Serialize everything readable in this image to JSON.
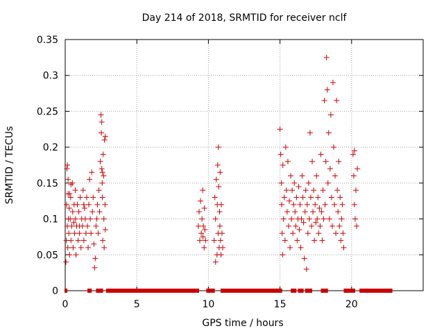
{
  "chart_data": {
    "type": "scatter",
    "title": "Day 214 of 2018, SRMTID for receiver nclf",
    "xlabel": "GPS time / hours",
    "ylabel": "SRMTID / TECUs",
    "xlim": [
      0,
      25
    ],
    "ylim": [
      0,
      0.35
    ],
    "xticks": [
      0,
      5,
      10,
      15,
      20
    ],
    "xtick_labels": [
      "0",
      "5",
      "10",
      "15",
      "20"
    ],
    "yticks": [
      0,
      0.05,
      0.1,
      0.15,
      0.2,
      0.25,
      0.3,
      0.35
    ],
    "ytick_labels": [
      "0",
      "0.05",
      "0.1",
      "0.15",
      "0.2",
      "0.25",
      "0.3",
      "0.35"
    ],
    "grid": true,
    "marker": "+",
    "colors": {
      "marker": "#cc0000",
      "grid": "#a0a0a0",
      "axis": "#000000"
    },
    "series": [
      {
        "name": "SRMTID",
        "points": [
          [
            0.05,
            0.04
          ],
          [
            0.08,
            0.07
          ],
          [
            0.1,
            0.12
          ],
          [
            0.12,
            0.17
          ],
          [
            0.15,
            0.09
          ],
          [
            0.18,
            0.06
          ],
          [
            0.2,
            0.135
          ],
          [
            0.22,
            0.1
          ],
          [
            0.25,
            0.08
          ],
          [
            0.28,
            0.115
          ],
          [
            0.3,
            0.05
          ],
          [
            0.35,
            0.1
          ],
          [
            0.38,
            0.13
          ],
          [
            0.4,
            0.07
          ],
          [
            0.45,
            0.09
          ],
          [
            0.5,
            0.15
          ],
          [
            0.52,
            0.11
          ],
          [
            0.55,
            0.06
          ],
          [
            0.6,
            0.095
          ],
          [
            0.62,
            0.12
          ],
          [
            0.65,
            0.08
          ],
          [
            0.7,
            0.14
          ],
          [
            0.72,
            0.1
          ],
          [
            0.75,
            0.05
          ],
          [
            0.8,
            0.09
          ],
          [
            0.85,
            0.12
          ],
          [
            0.9,
            0.07
          ],
          [
            0.95,
            0.11
          ],
          [
            1.0,
            0.08
          ],
          [
            1.05,
            0.13
          ],
          [
            1.1,
            0.06
          ],
          [
            1.15,
            0.1
          ],
          [
            1.2,
            0.09
          ],
          [
            1.25,
            0.14
          ],
          [
            1.3,
            0.07
          ],
          [
            1.35,
            0.115
          ],
          [
            1.4,
            0.1
          ],
          [
            1.45,
            0.08
          ],
          [
            1.5,
            0.13
          ],
          [
            1.55,
            0.09
          ],
          [
            1.6,
            0.06
          ],
          [
            1.65,
            0.12
          ],
          [
            1.7,
            0.155
          ],
          [
            1.75,
            0.1
          ],
          [
            1.8,
            0.08
          ],
          [
            1.85,
            0.165
          ],
          [
            1.9,
            0.11
          ],
          [
            1.95,
            0.13
          ],
          [
            2.0,
            0.065
          ],
          [
            2.05,
            0.032
          ],
          [
            2.1,
            0.045
          ],
          [
            2.15,
            0.09
          ],
          [
            2.2,
            0.1
          ],
          [
            2.25,
            0.12
          ],
          [
            2.3,
            0.08
          ],
          [
            2.35,
            0.14
          ],
          [
            2.4,
            0.11
          ],
          [
            2.45,
            0.18
          ],
          [
            2.5,
            0.245
          ],
          [
            2.52,
            0.22
          ],
          [
            2.55,
            0.17
          ],
          [
            2.58,
            0.15
          ],
          [
            2.6,
            0.13
          ],
          [
            2.62,
            0.07
          ],
          [
            2.65,
            0.19
          ],
          [
            2.68,
            0.16
          ],
          [
            2.7,
            0.1
          ],
          [
            2.72,
            0.06
          ],
          [
            2.75,
            0.21
          ],
          [
            2.78,
            0.12
          ],
          [
            2.8,
            0.085
          ],
          [
            0.15,
            0.175
          ],
          [
            0.2,
            0.155
          ],
          [
            0.4,
            0.148
          ],
          [
            2.55,
            0.235
          ],
          [
            2.8,
            0.215
          ],
          [
            2.6,
            0.165
          ],
          [
            0.3,
            0.135
          ],
          [
            1.0,
            0.09
          ],
          [
            1.3,
            0.12
          ],
          [
            9.3,
            0.09
          ],
          [
            9.35,
            0.11
          ],
          [
            9.4,
            0.07
          ],
          [
            9.45,
            0.125
          ],
          [
            9.5,
            0.08
          ],
          [
            9.55,
            0.1
          ],
          [
            9.6,
            0.14
          ],
          [
            9.62,
            0.075
          ],
          [
            9.65,
            0.09
          ],
          [
            9.7,
            0.06
          ],
          [
            9.72,
            0.115
          ],
          [
            9.75,
            0.085
          ],
          [
            9.8,
            0.07
          ],
          [
            10.4,
            0.07
          ],
          [
            10.45,
            0.13
          ],
          [
            10.5,
            0.1
          ],
          [
            10.55,
            0.155
          ],
          [
            10.6,
            0.05
          ],
          [
            10.62,
            0.12
          ],
          [
            10.65,
            0.175
          ],
          [
            10.68,
            0.08
          ],
          [
            10.7,
            0.2
          ],
          [
            10.72,
            0.145
          ],
          [
            10.75,
            0.06
          ],
          [
            10.78,
            0.11
          ],
          [
            10.8,
            0.09
          ],
          [
            10.82,
            0.165
          ],
          [
            10.85,
            0.07
          ],
          [
            10.88,
            0.05
          ],
          [
            10.9,
            0.12
          ],
          [
            10.95,
            0.08
          ],
          [
            11.0,
            0.06
          ],
          [
            10.5,
            0.04
          ],
          [
            15.0,
            0.225
          ],
          [
            15.05,
            0.19
          ],
          [
            15.1,
            0.15
          ],
          [
            15.12,
            0.12
          ],
          [
            15.15,
            0.08
          ],
          [
            15.18,
            0.05
          ],
          [
            15.2,
            0.175
          ],
          [
            15.25,
            0.1
          ],
          [
            15.3,
            0.13
          ],
          [
            15.35,
            0.07
          ],
          [
            15.4,
            0.2
          ],
          [
            15.45,
            0.14
          ],
          [
            15.5,
            0.11
          ],
          [
            15.55,
            0.18
          ],
          [
            15.6,
            0.09
          ],
          [
            15.65,
            0.125
          ],
          [
            15.7,
            0.06
          ],
          [
            15.75,
            0.16
          ],
          [
            15.8,
            0.1
          ],
          [
            15.85,
            0.14
          ],
          [
            15.9,
            0.08
          ],
          [
            15.95,
            0.12
          ],
          [
            16.0,
            0.15
          ],
          [
            16.05,
            0.11
          ],
          [
            16.1,
            0.09
          ],
          [
            16.15,
            0.13
          ],
          [
            16.2,
            0.07
          ],
          [
            16.25,
            0.1
          ],
          [
            16.3,
            0.145
          ],
          [
            16.35,
            0.085
          ],
          [
            16.4,
            0.12
          ],
          [
            16.45,
            0.06
          ],
          [
            16.5,
            0.1
          ],
          [
            16.55,
            0.16
          ],
          [
            16.6,
            0.13
          ],
          [
            16.65,
            0.095
          ],
          [
            16.7,
            0.045
          ],
          [
            16.75,
            0.11
          ],
          [
            16.8,
            0.14
          ],
          [
            16.85,
            0.03
          ],
          [
            16.9,
            0.12
          ],
          [
            16.95,
            0.08
          ],
          [
            17.0,
            0.15
          ],
          [
            17.05,
            0.1
          ],
          [
            17.1,
            0.22
          ],
          [
            17.15,
            0.13
          ],
          [
            17.2,
            0.09
          ],
          [
            17.25,
            0.18
          ],
          [
            17.3,
            0.11
          ],
          [
            17.35,
            0.14
          ],
          [
            17.4,
            0.07
          ],
          [
            17.45,
            0.12
          ],
          [
            17.5,
            0.095
          ],
          [
            17.55,
            0.16
          ],
          [
            17.6,
            0.1
          ],
          [
            17.65,
            0.13
          ],
          [
            17.7,
            0.08
          ],
          [
            17.75,
            0.115
          ],
          [
            17.8,
            0.09
          ],
          [
            17.85,
            0.19
          ],
          [
            17.9,
            0.11
          ],
          [
            17.95,
            0.07
          ],
          [
            18.0,
            0.14
          ],
          [
            18.05,
            0.1
          ],
          [
            18.1,
            0.265
          ],
          [
            18.15,
            0.12
          ],
          [
            18.2,
            0.18
          ],
          [
            18.25,
            0.325
          ],
          [
            18.3,
            0.28
          ],
          [
            18.35,
            0.15
          ],
          [
            18.4,
            0.22
          ],
          [
            18.45,
            0.1
          ],
          [
            18.5,
            0.17
          ],
          [
            18.55,
            0.245
          ],
          [
            18.6,
            0.13
          ],
          [
            18.65,
            0.09
          ],
          [
            18.7,
            0.29
          ],
          [
            18.75,
            0.2
          ],
          [
            18.8,
            0.12
          ],
          [
            18.85,
            0.16
          ],
          [
            18.9,
            0.08
          ],
          [
            18.95,
            0.265
          ],
          [
            19.0,
            0.14
          ],
          [
            19.05,
            0.11
          ],
          [
            19.1,
            0.18
          ],
          [
            19.15,
            0.09
          ],
          [
            19.2,
            0.13
          ],
          [
            19.25,
            0.07
          ],
          [
            19.3,
            0.1
          ],
          [
            19.35,
            0.12
          ],
          [
            19.4,
            0.08
          ],
          [
            19.45,
            0.06
          ],
          [
            20.1,
            0.19
          ],
          [
            20.15,
            0.16
          ],
          [
            20.2,
            0.12
          ],
          [
            20.25,
            0.1
          ],
          [
            20.3,
            0.14
          ],
          [
            20.35,
            0.09
          ],
          [
            20.4,
            0.17
          ],
          [
            20.2,
            0.195
          ]
        ],
        "zero_segments": [
          [
            0.0,
            0.1
          ],
          [
            1.6,
            1.8
          ],
          [
            2.2,
            2.6
          ],
          [
            2.9,
            9.3
          ],
          [
            9.9,
            10.4
          ],
          [
            10.9,
            15.1
          ],
          [
            15.8,
            16.1
          ],
          [
            16.3,
            16.6
          ],
          [
            16.8,
            17.2
          ],
          [
            17.9,
            18.3
          ],
          [
            19.5,
            20.2
          ],
          [
            20.6,
            22.8
          ]
        ]
      }
    ]
  }
}
